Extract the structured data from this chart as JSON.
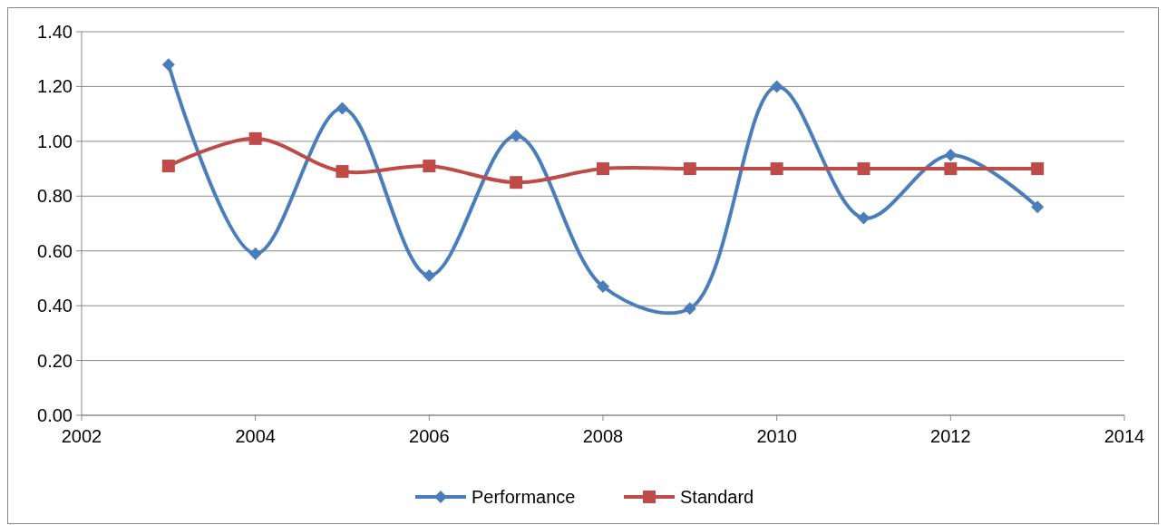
{
  "chart_data": {
    "type": "line",
    "x": [
      2003,
      2004,
      2005,
      2006,
      2007,
      2008,
      2009,
      2010,
      2011,
      2012,
      2013
    ],
    "series": [
      {
        "name": "Performance",
        "color": "#4a7ebb",
        "marker": "diamond",
        "values": [
          1.28,
          0.59,
          1.12,
          0.51,
          1.02,
          0.47,
          0.39,
          1.2,
          0.72,
          0.95,
          0.76
        ]
      },
      {
        "name": "Standard",
        "color": "#be4b48",
        "marker": "square",
        "values": [
          0.91,
          1.01,
          0.89,
          0.91,
          0.85,
          0.9,
          0.9,
          0.9,
          0.9,
          0.9,
          0.9
        ]
      }
    ],
    "xlim": [
      2002,
      2014
    ],
    "xticks": [
      2002,
      2004,
      2006,
      2008,
      2010,
      2012,
      2014
    ],
    "ylim": [
      0,
      1.4
    ],
    "yticks": [
      {
        "value": 0,
        "label": "0.00"
      },
      {
        "value": 0.2,
        "label": "0.20"
      },
      {
        "value": 0.4,
        "label": "0.40"
      },
      {
        "value": 0.6,
        "label": "0.60"
      },
      {
        "value": 0.8,
        "label": "0.80"
      },
      {
        "value": 1,
        "label": "1.00"
      },
      {
        "value": 1.2,
        "label": "1.20"
      },
      {
        "value": 1.4,
        "label": "1.40"
      }
    ],
    "grid": "y",
    "legend": "bottom",
    "line_style": "solid"
  }
}
